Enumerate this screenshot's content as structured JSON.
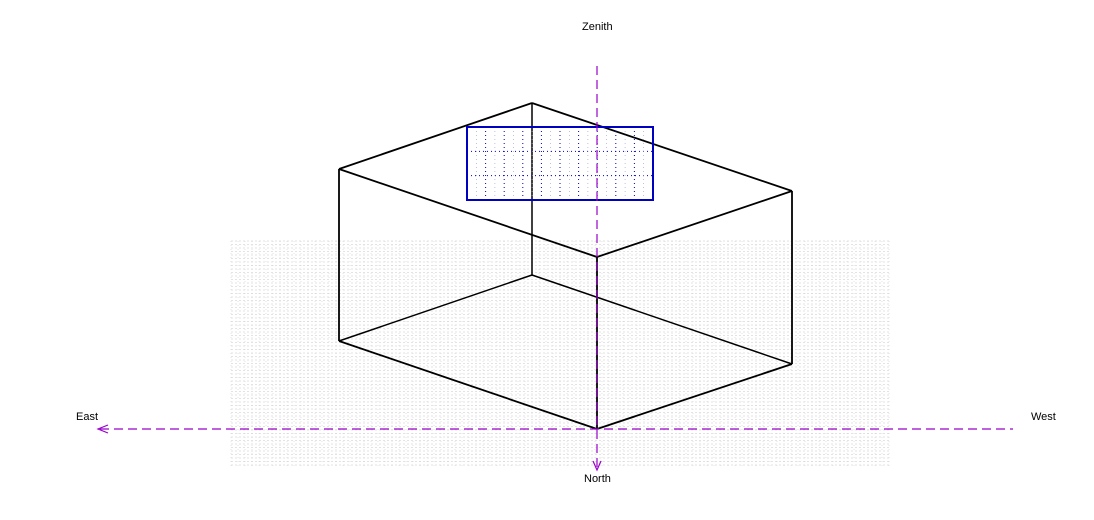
{
  "axes": {
    "zenith": "Zenith",
    "east": "East",
    "west": "West",
    "north": "North"
  },
  "colors": {
    "background": "#ffffff",
    "box_edges": "#000000",
    "panel": "#0000c0",
    "axis": "#9900cc",
    "ground_grid": "#c8c8c8"
  }
}
